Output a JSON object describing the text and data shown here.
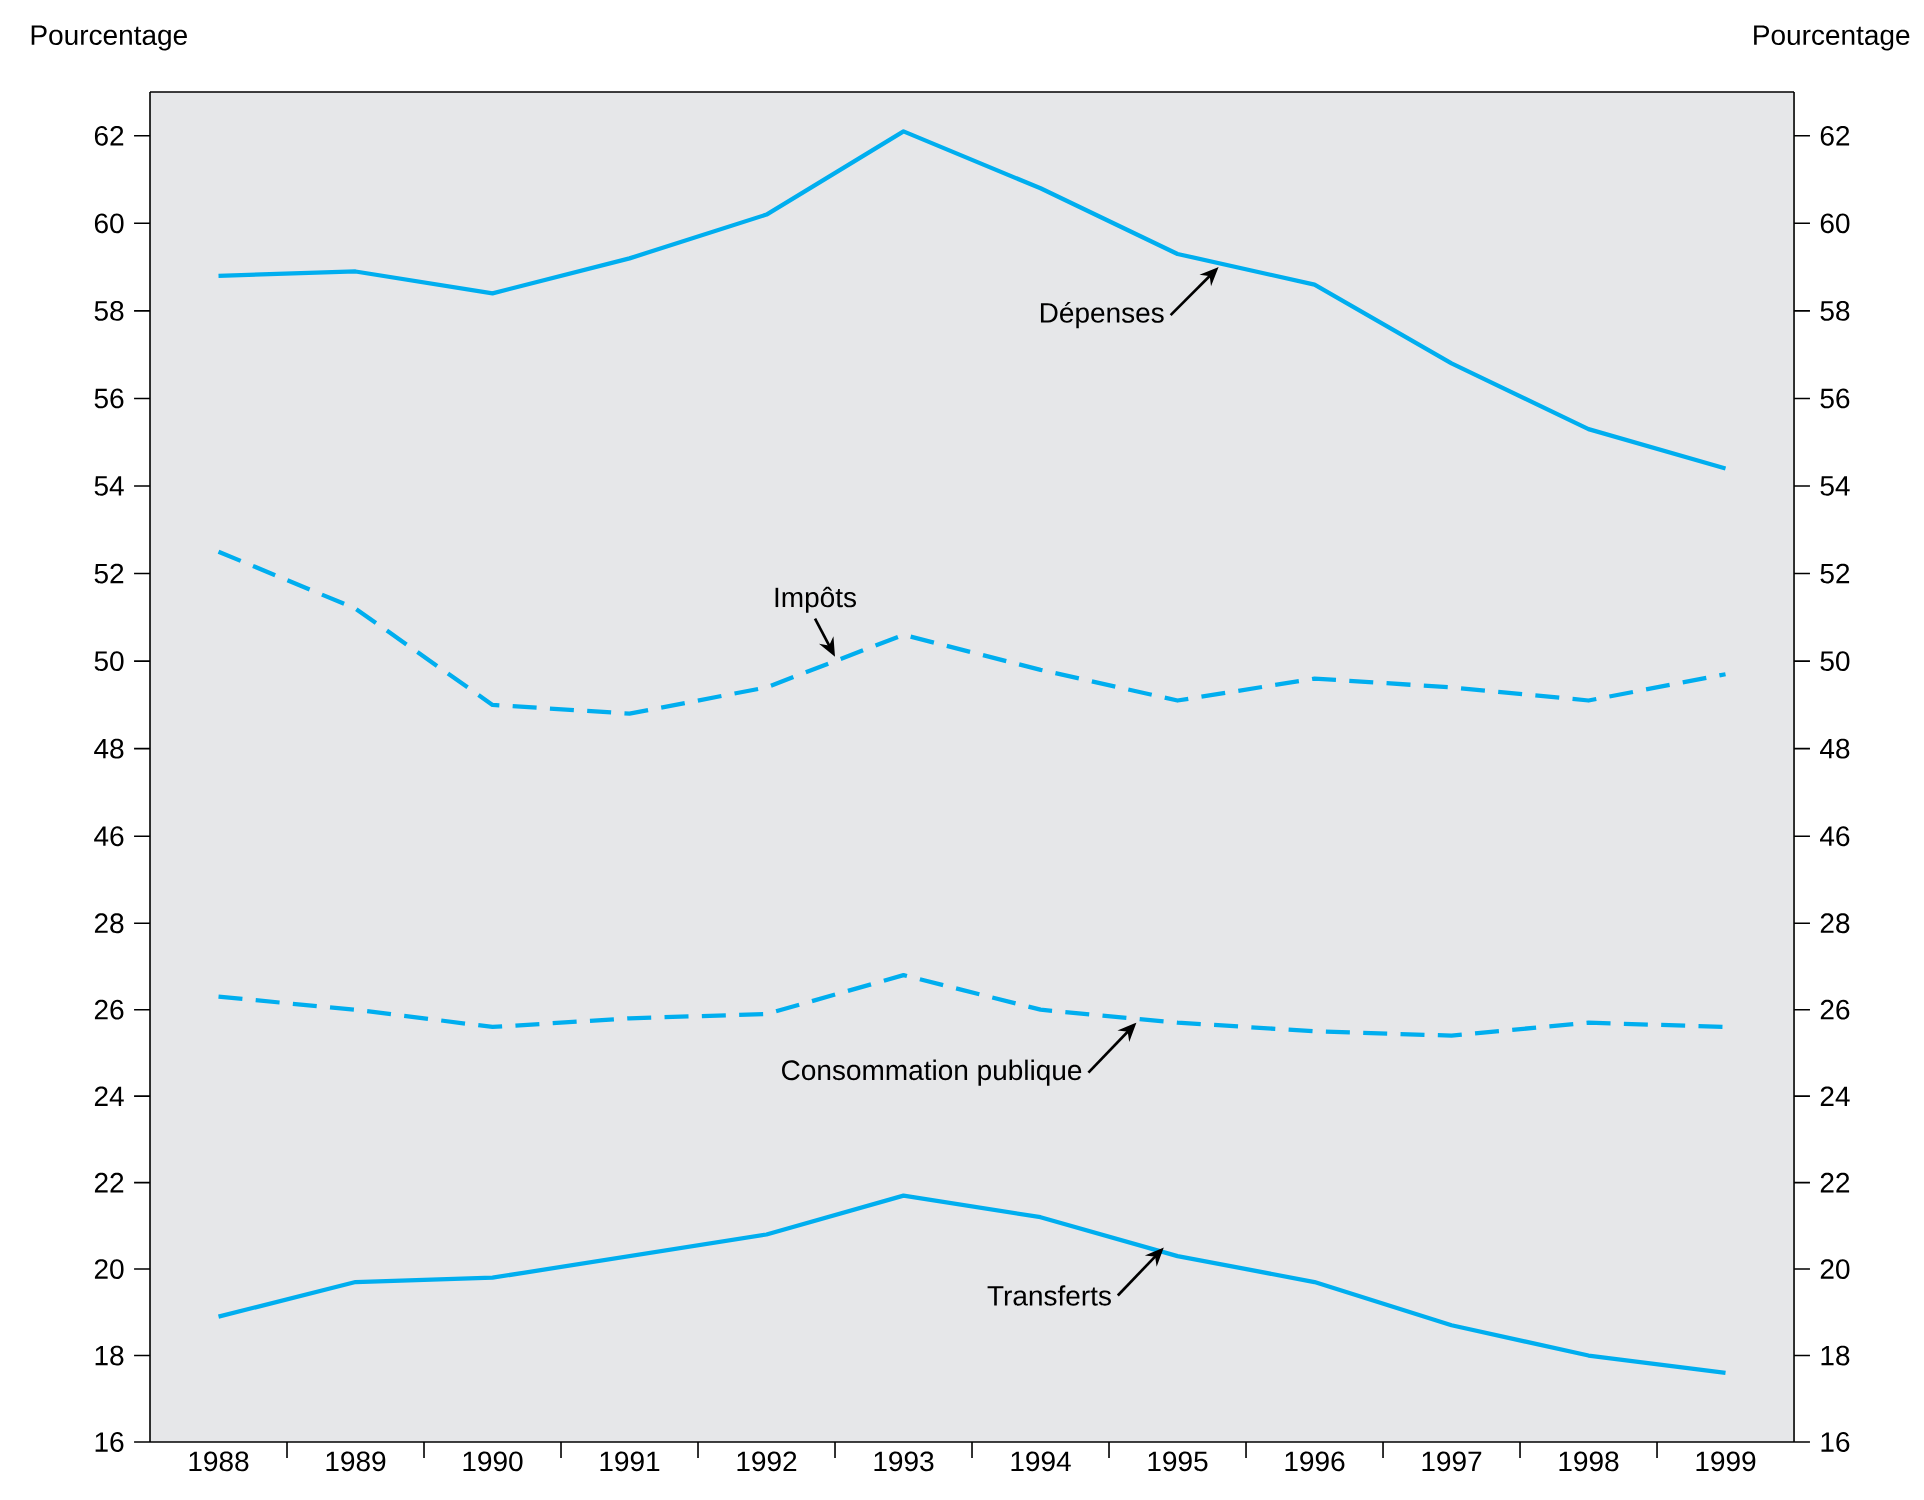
{
  "chart_data": [
    {
      "type": "line",
      "ylabel": "Pourcentage",
      "y2label": "Pourcentage",
      "xlim": [
        1987.5,
        1999.5
      ],
      "ylim": [
        45,
        63
      ],
      "yticks": [
        46,
        48,
        50,
        52,
        54,
        56,
        58,
        60,
        62
      ],
      "y2lim": [
        45,
        63
      ],
      "y2ticks": [
        46,
        48,
        50,
        52,
        54,
        56,
        58,
        60,
        62
      ],
      "tick_labels": "y",
      "x": [
        1988,
        1989,
        1990,
        1991,
        1992,
        1993,
        1994,
        1995,
        1996,
        1997,
        1998,
        1999
      ],
      "series": [
        {
          "color": "#00aeef",
          "line_style": "solid",
          "values": [
            58.8,
            58.9,
            58.4,
            59.2,
            60.2,
            62.1,
            60.8,
            59.3,
            58.6,
            56.8,
            55.3,
            54.4
          ]
        },
        {
          "color": "#00aeef",
          "line_style": "dashed",
          "values": [
            52.5,
            51.2,
            49.0,
            48.8,
            49.4,
            50.6,
            49.8,
            49.1,
            49.6,
            49.4,
            49.1,
            49.7
          ]
        }
      ],
      "annotations": [
        {
          "text": "Dépenses",
          "x": 1995.3,
          "y": 59.0
        },
        {
          "text": "Impôts",
          "x": 1992.5,
          "y": 50.1
        }
      ]
    },
    {
      "type": "line",
      "xlim": [
        1987.5,
        1999.5
      ],
      "ylim": [
        16,
        29
      ],
      "yticks": [
        16,
        18,
        20,
        22,
        24,
        26,
        28
      ],
      "y2lim": [
        16,
        29
      ],
      "y2ticks": [
        16,
        18,
        20,
        22,
        24,
        26,
        28
      ],
      "xticks": [
        1988,
        {
          "value": 1988.5,
          "label": null
        },
        1989,
        {
          "value": 1989.5,
          "label": null
        },
        1990,
        {
          "value": 1990.5,
          "label": null
        },
        1991,
        {
          "value": 1991.5,
          "label": null
        },
        1992,
        {
          "value": 1992.5,
          "label": null
        },
        1993,
        {
          "value": 1993.5,
          "label": null
        },
        1994,
        {
          "value": 1994.5,
          "label": null
        },
        1995,
        {
          "value": 1995.5,
          "label": null
        },
        1996,
        {
          "value": 1996.5,
          "label": null
        },
        1997,
        {
          "value": 1997.5,
          "label": null
        },
        1998,
        {
          "value": 1998.5,
          "label": null
        },
        1999
      ],
      "x": [
        1988,
        1989,
        1990,
        1991,
        1992,
        1993,
        1994,
        1995,
        1996,
        1997,
        1998,
        1999
      ],
      "series": [
        {
          "color": "#00aeef",
          "line_style": "dashed",
          "values": [
            26.3,
            26.0,
            25.6,
            25.8,
            25.9,
            26.8,
            26.0,
            25.7,
            25.5,
            25.4,
            25.7,
            25.6
          ]
        },
        {
          "color": "#00aeef",
          "line_style": "solid",
          "values": [
            18.9,
            19.7,
            19.8,
            20.3,
            20.8,
            21.7,
            21.2,
            20.3,
            19.7,
            18.7,
            18.0,
            17.6
          ]
        }
      ],
      "annotations": [
        {
          "text": "Consommation publique",
          "x": 1994.7,
          "y": 25.7
        },
        {
          "text": "Transferts",
          "x": 1994.9,
          "y": 20.5
        }
      ]
    }
  ]
}
